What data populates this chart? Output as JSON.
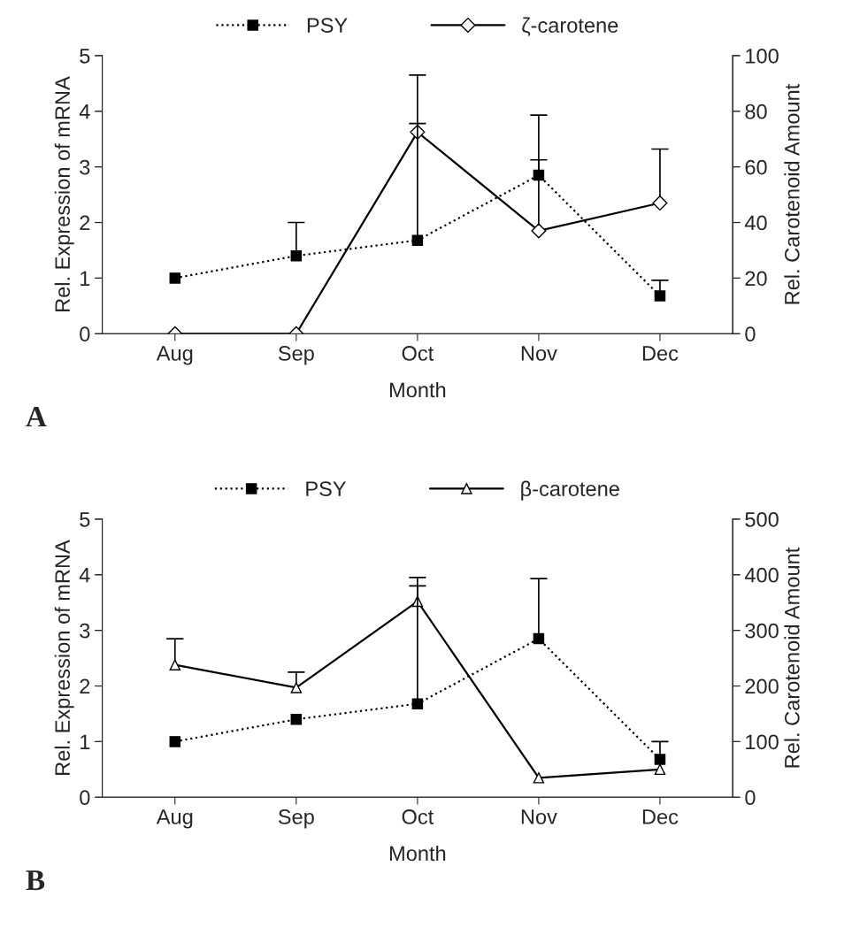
{
  "chart_data": [
    {
      "type": "line",
      "xlabel": "Month",
      "ylabel": "Rel. Expression of mRNA",
      "y2label": "Rel. Carotenoid Amount",
      "categories": [
        "Aug",
        "Sep",
        "Oct",
        "Nov",
        "Dec"
      ],
      "ylim": [
        0,
        5
      ],
      "yticks": [
        0,
        1,
        2,
        3,
        4,
        5
      ],
      "y2lim": [
        0,
        100
      ],
      "y2ticks": [
        0,
        20,
        40,
        60,
        80,
        100
      ],
      "legend": "top",
      "annotations": [
        "A"
      ],
      "series": [
        {
          "name": "PSY",
          "color": "#000000",
          "marker": "square",
          "line_style": "dotted",
          "values": [
            1.0,
            1.4,
            1.68,
            2.85,
            0.68
          ],
          "errors": [
            null,
            [
              1.4,
              2.0
            ],
            [
              1.68,
              3.78
            ],
            [
              2.85,
              3.93
            ],
            [
              0.68,
              0.96
            ]
          ]
        },
        {
          "name": "ζ-carotene",
          "color": "#000000",
          "marker": "diamond",
          "line_style": "solid",
          "axis": "y2",
          "values": [
            0,
            0,
            72.5,
            37,
            47
          ],
          "errors": [
            null,
            null,
            [
              72.5,
              93
            ],
            [
              37,
              62.5
            ],
            [
              47,
              66.4
            ]
          ]
        }
      ]
    },
    {
      "type": "line",
      "xlabel": "Month",
      "ylabel": "Rel. Expression of mRNA",
      "y2label": "Rel. Carotenoid Amount",
      "categories": [
        "Aug",
        "Sep",
        "Oct",
        "Nov",
        "Dec"
      ],
      "ylim": [
        0,
        5
      ],
      "yticks": [
        0,
        1,
        2,
        3,
        4,
        5
      ],
      "y2lim": [
        0,
        500
      ],
      "y2ticks": [
        0,
        100,
        200,
        300,
        400,
        500
      ],
      "legend": "top",
      "annotations": [
        "B"
      ],
      "series": [
        {
          "name": "PSY",
          "color": "#000000",
          "marker": "square",
          "line_style": "dotted",
          "values": [
            1.0,
            1.4,
            1.68,
            2.85,
            0.68
          ],
          "errors": [
            null,
            null,
            [
              1.68,
              3.8
            ],
            [
              2.85,
              3.93
            ],
            [
              0.68,
              1.0
            ]
          ]
        },
        {
          "name": "β-carotene",
          "color": "#000000",
          "marker": "triangle",
          "line_style": "solid",
          "axis": "y2",
          "values": [
            238,
            197,
            352,
            35,
            50
          ],
          "errors": [
            [
              238,
              285
            ],
            [
              197,
              225
            ],
            [
              352,
              395
            ],
            null,
            null
          ]
        }
      ]
    }
  ]
}
